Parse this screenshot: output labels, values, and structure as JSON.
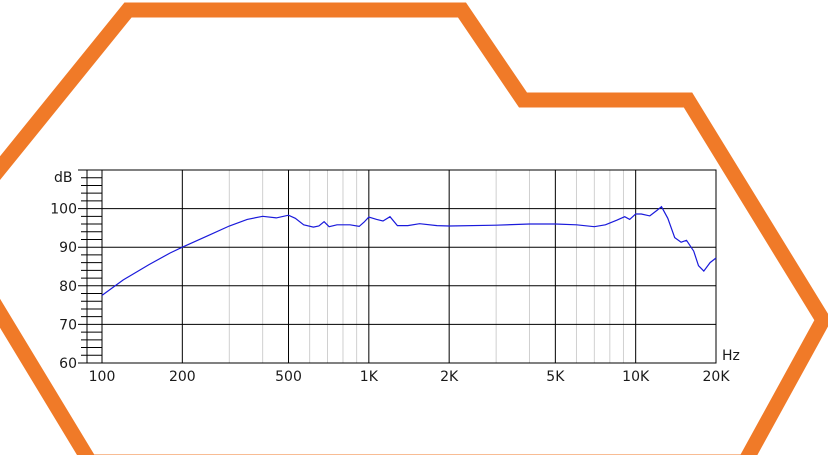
{
  "colors": {
    "decoration": "#F07A28",
    "curve": "#1A1ADB",
    "major_grid": "#000000",
    "minor_grid": "#d0d0d0",
    "text": "#1a1a1a"
  },
  "chart_data": {
    "type": "line",
    "title": "",
    "xlabel": "Hz",
    "ylabel": "dB",
    "x_scale": "log",
    "xlim": [
      100,
      20000
    ],
    "ylim": [
      60,
      110
    ],
    "grid": true,
    "x_ticks": [
      {
        "value": 100,
        "label": "100"
      },
      {
        "value": 200,
        "label": "200"
      },
      {
        "value": 500,
        "label": "500"
      },
      {
        "value": 1000,
        "label": "1K"
      },
      {
        "value": 2000,
        "label": "2K"
      },
      {
        "value": 5000,
        "label": "5K"
      },
      {
        "value": 10000,
        "label": "10K"
      },
      {
        "value": 20000,
        "label": "20K"
      }
    ],
    "y_ticks": [
      {
        "value": 60,
        "label": "60"
      },
      {
        "value": 70,
        "label": "70"
      },
      {
        "value": 80,
        "label": "80"
      },
      {
        "value": 90,
        "label": "90"
      },
      {
        "value": 100,
        "label": "100"
      }
    ],
    "series": [
      {
        "points": [
          [
            100,
            77.5
          ],
          [
            120,
            81.5
          ],
          [
            150,
            85.5
          ],
          [
            180,
            88.5
          ],
          [
            200,
            90
          ],
          [
            250,
            93
          ],
          [
            300,
            95.5
          ],
          [
            350,
            97.2
          ],
          [
            400,
            98
          ],
          [
            450,
            97.6
          ],
          [
            500,
            98.3
          ],
          [
            530,
            97.5
          ],
          [
            570,
            95.8
          ],
          [
            620,
            95.2
          ],
          [
            650,
            95.5
          ],
          [
            680,
            96.6
          ],
          [
            710,
            95.3
          ],
          [
            760,
            95.8
          ],
          [
            850,
            95.8
          ],
          [
            920,
            95.4
          ],
          [
            960,
            96.5
          ],
          [
            1000,
            97.8
          ],
          [
            1070,
            97.2
          ],
          [
            1130,
            96.8
          ],
          [
            1200,
            97.9
          ],
          [
            1280,
            95.6
          ],
          [
            1400,
            95.6
          ],
          [
            1550,
            96.1
          ],
          [
            1800,
            95.6
          ],
          [
            2000,
            95.5
          ],
          [
            3000,
            95.7
          ],
          [
            4000,
            96
          ],
          [
            5000,
            96
          ],
          [
            6000,
            95.8
          ],
          [
            7000,
            95.3
          ],
          [
            7700,
            95.8
          ],
          [
            8500,
            97
          ],
          [
            9100,
            97.9
          ],
          [
            9500,
            97.2
          ],
          [
            10000,
            98.6
          ],
          [
            10500,
            98.6
          ],
          [
            11300,
            98.1
          ],
          [
            12000,
            99.5
          ],
          [
            12500,
            100.5
          ],
          [
            13200,
            97.5
          ],
          [
            14000,
            92.5
          ],
          [
            14800,
            91.3
          ],
          [
            15500,
            91.8
          ],
          [
            16500,
            89
          ],
          [
            17200,
            85.2
          ],
          [
            18000,
            83.8
          ],
          [
            19000,
            86
          ],
          [
            20000,
            87.2
          ]
        ]
      }
    ]
  }
}
